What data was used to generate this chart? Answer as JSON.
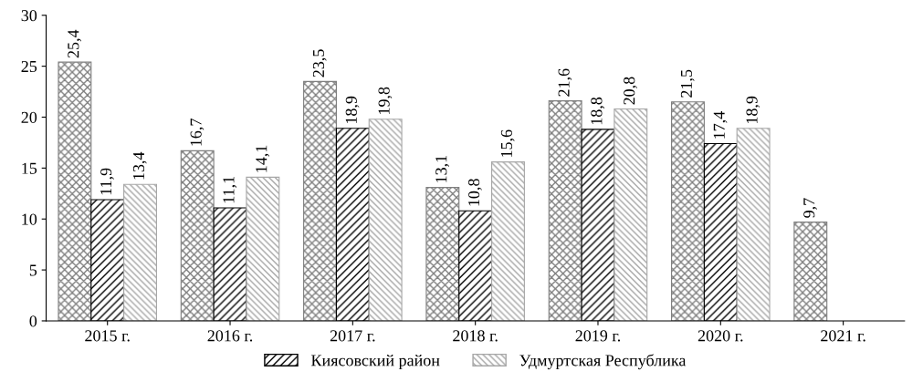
{
  "chart_data": {
    "type": "bar",
    "categories": [
      "2015 г.",
      "2016 г.",
      "2017 г.",
      "2018 г.",
      "2019 г.",
      "2020 г.",
      "2021 г."
    ],
    "series": [
      {
        "color": "#7f7f7f",
        "values": [
          25.4,
          16.7,
          23.5,
          13.1,
          21.6,
          21.5,
          9.7
        ],
        "value_labels": [
          "25,4",
          "16,7",
          "23,5",
          "13,1",
          "21,6",
          "21,5",
          "9,7"
        ]
      },
      {
        "name": "Киясовский район",
        "color": "#000000",
        "values": [
          11.9,
          11.1,
          18.9,
          10.8,
          18.8,
          17.4,
          null
        ],
        "value_labels": [
          "11,9",
          "11,1",
          "18,9",
          "10,8",
          "18,8",
          "17,4",
          null
        ]
      },
      {
        "name": "Удмуртская Республика",
        "color": "#a6a6a6",
        "values": [
          13.4,
          14.1,
          19.8,
          15.6,
          20.8,
          18.9,
          null
        ],
        "value_labels": [
          "13,4",
          "14,1",
          "19,8",
          "15,6",
          "20,8",
          "18,9",
          null
        ]
      }
    ],
    "ylim": [
      0,
      30
    ],
    "yticks": [
      0,
      5,
      10,
      15,
      20,
      25,
      30
    ],
    "grid": false,
    "legend": "bottom"
  }
}
